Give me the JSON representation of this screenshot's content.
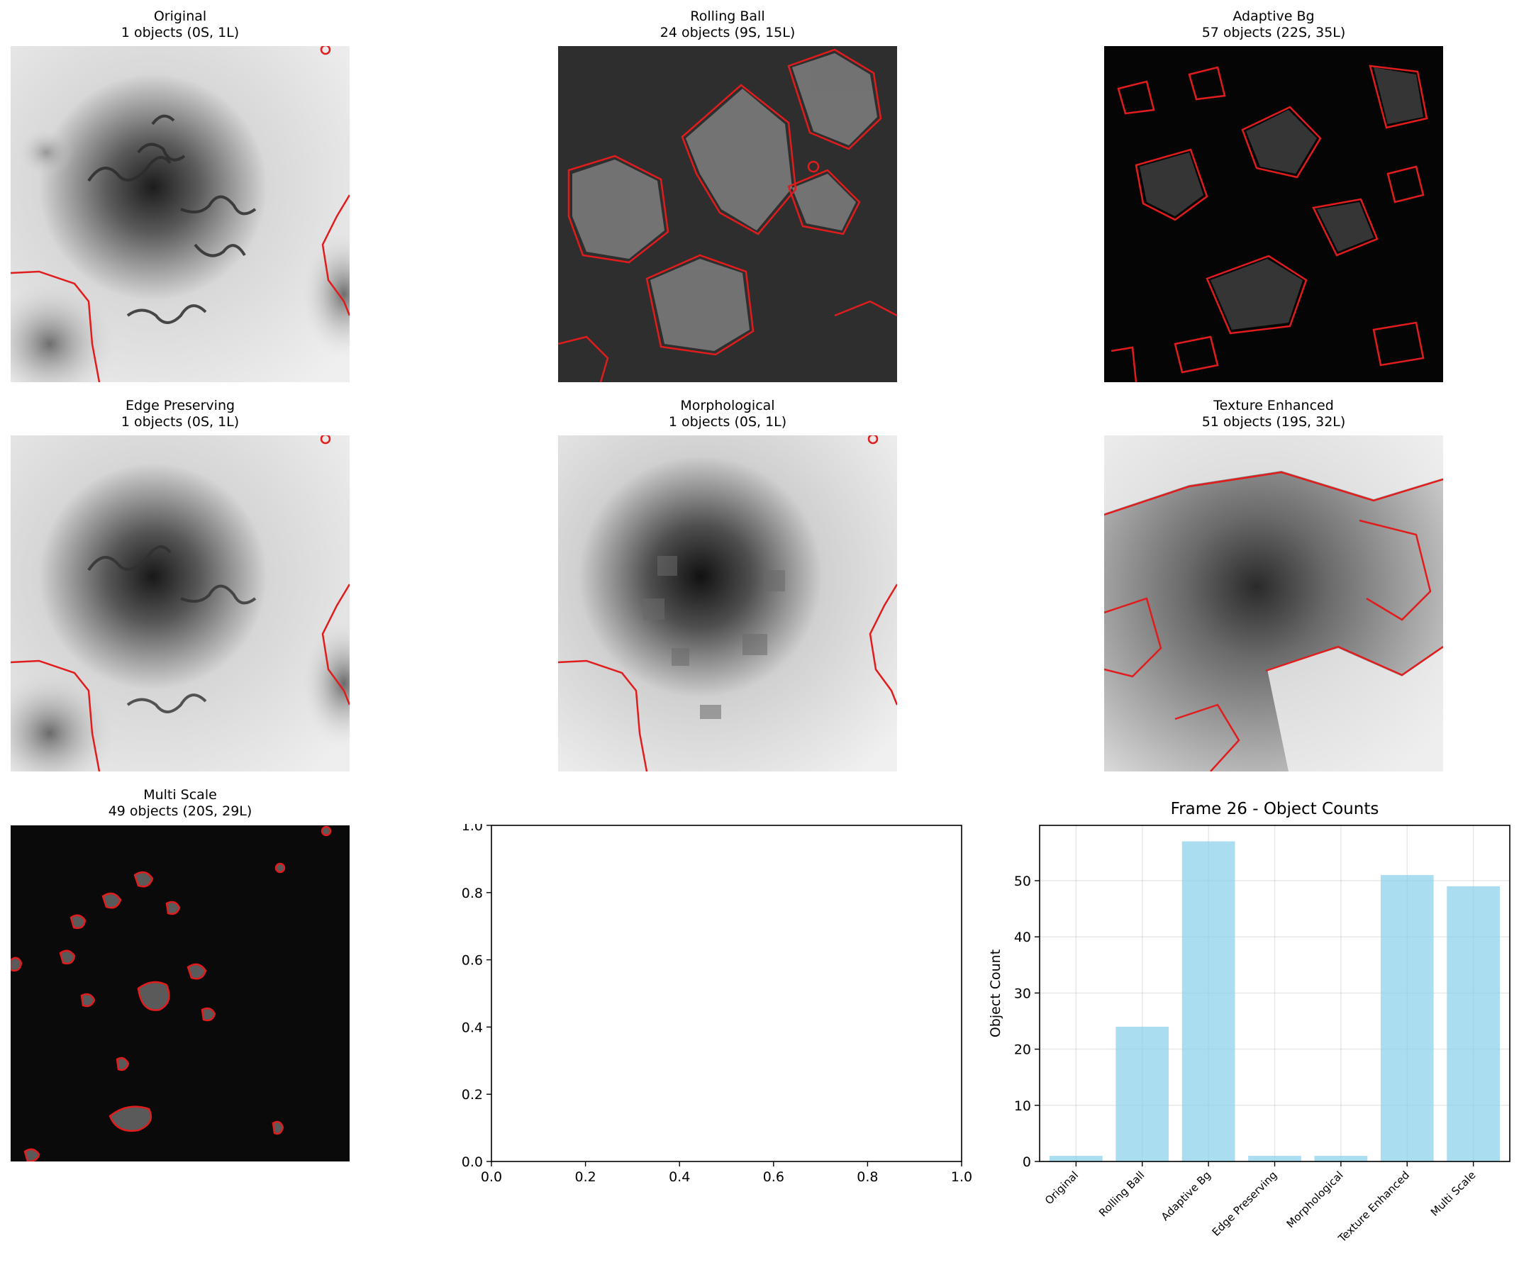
{
  "panels": [
    {
      "title": "Original",
      "subtitle": "1 objects (0S, 1L)",
      "style": "light"
    },
    {
      "title": "Rolling Ball",
      "subtitle": "24 objects (9S, 15L)",
      "style": "dark-outlined"
    },
    {
      "title": "Adaptive Bg",
      "subtitle": "57 objects (22S, 35L)",
      "style": "black-outlined"
    },
    {
      "title": "Edge Preserving",
      "subtitle": "1 objects (0S, 1L)",
      "style": "light-smooth"
    },
    {
      "title": "Morphological",
      "subtitle": "1 objects (0S, 1L)",
      "style": "light-blocky"
    },
    {
      "title": "Texture Enhanced",
      "subtitle": "51 objects (19S, 32L)",
      "style": "grey-outlined"
    },
    {
      "title": "Multi Scale",
      "subtitle": "49 objects (20S, 29L)",
      "style": "black-sparse"
    }
  ],
  "chart_data": [
    {
      "type": "line",
      "title": "",
      "xlabel": "",
      "ylabel": "",
      "xlim": [
        0.0,
        1.0
      ],
      "ylim": [
        0.0,
        1.0
      ],
      "xticks": [
        "0.0",
        "0.2",
        "0.4",
        "0.6",
        "0.8",
        "1.0"
      ],
      "yticks": [
        "0.0",
        "0.2",
        "0.4",
        "0.6",
        "0.8",
        "1.0"
      ],
      "series": []
    },
    {
      "type": "bar",
      "title": "Frame 26 - Object Counts",
      "xlabel": "",
      "ylabel": "Object Count",
      "categories": [
        "Original",
        "Rolling Ball",
        "Adaptive Bg",
        "Edge Preserving",
        "Morphological",
        "Texture Enhanced",
        "Multi Scale"
      ],
      "values": [
        1,
        24,
        57,
        1,
        1,
        51,
        49
      ],
      "ylim": [
        0,
        60
      ],
      "yticks": [
        "0",
        "10",
        "20",
        "30",
        "40",
        "50"
      ],
      "grid": true,
      "bar_color": "#87ceeb"
    }
  ]
}
